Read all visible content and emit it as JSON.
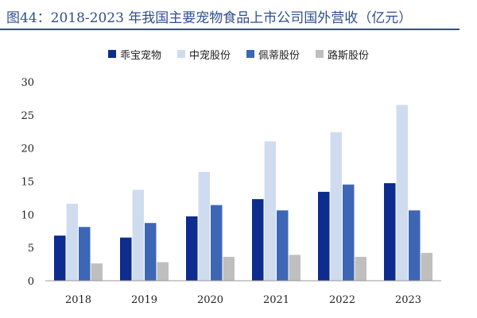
{
  "page": {
    "title": "图44：2018-2023 年我国主要宠物食品上市公司国外营收（亿元）"
  },
  "chart_data": {
    "type": "bar",
    "title": "图44：2018-2023 年我国主要宠物食品上市公司国外营收（亿元）",
    "xlabel": "",
    "ylabel": "",
    "categories": [
      "2018",
      "2019",
      "2020",
      "2021",
      "2022",
      "2023"
    ],
    "ylim": [
      0,
      30
    ],
    "yticks": [
      0,
      5,
      10,
      15,
      20,
      25,
      30
    ],
    "grid": false,
    "legend_position": "top",
    "series": [
      {
        "name": "乖宝宠物",
        "color": "#0e2c8e",
        "values": [
          6.8,
          6.5,
          9.7,
          12.3,
          13.4,
          14.7
        ]
      },
      {
        "name": "中宠股份",
        "color": "#cfdcf0",
        "values": [
          11.6,
          13.7,
          16.4,
          21.0,
          22.4,
          26.5
        ]
      },
      {
        "name": "佩蒂股份",
        "color": "#3d67b5",
        "values": [
          8.1,
          8.7,
          11.4,
          10.6,
          14.5,
          10.6
        ]
      },
      {
        "name": "路斯股份",
        "color": "#bfbfbf",
        "values": [
          2.6,
          2.8,
          3.6,
          3.9,
          3.6,
          4.2
        ]
      }
    ]
  }
}
